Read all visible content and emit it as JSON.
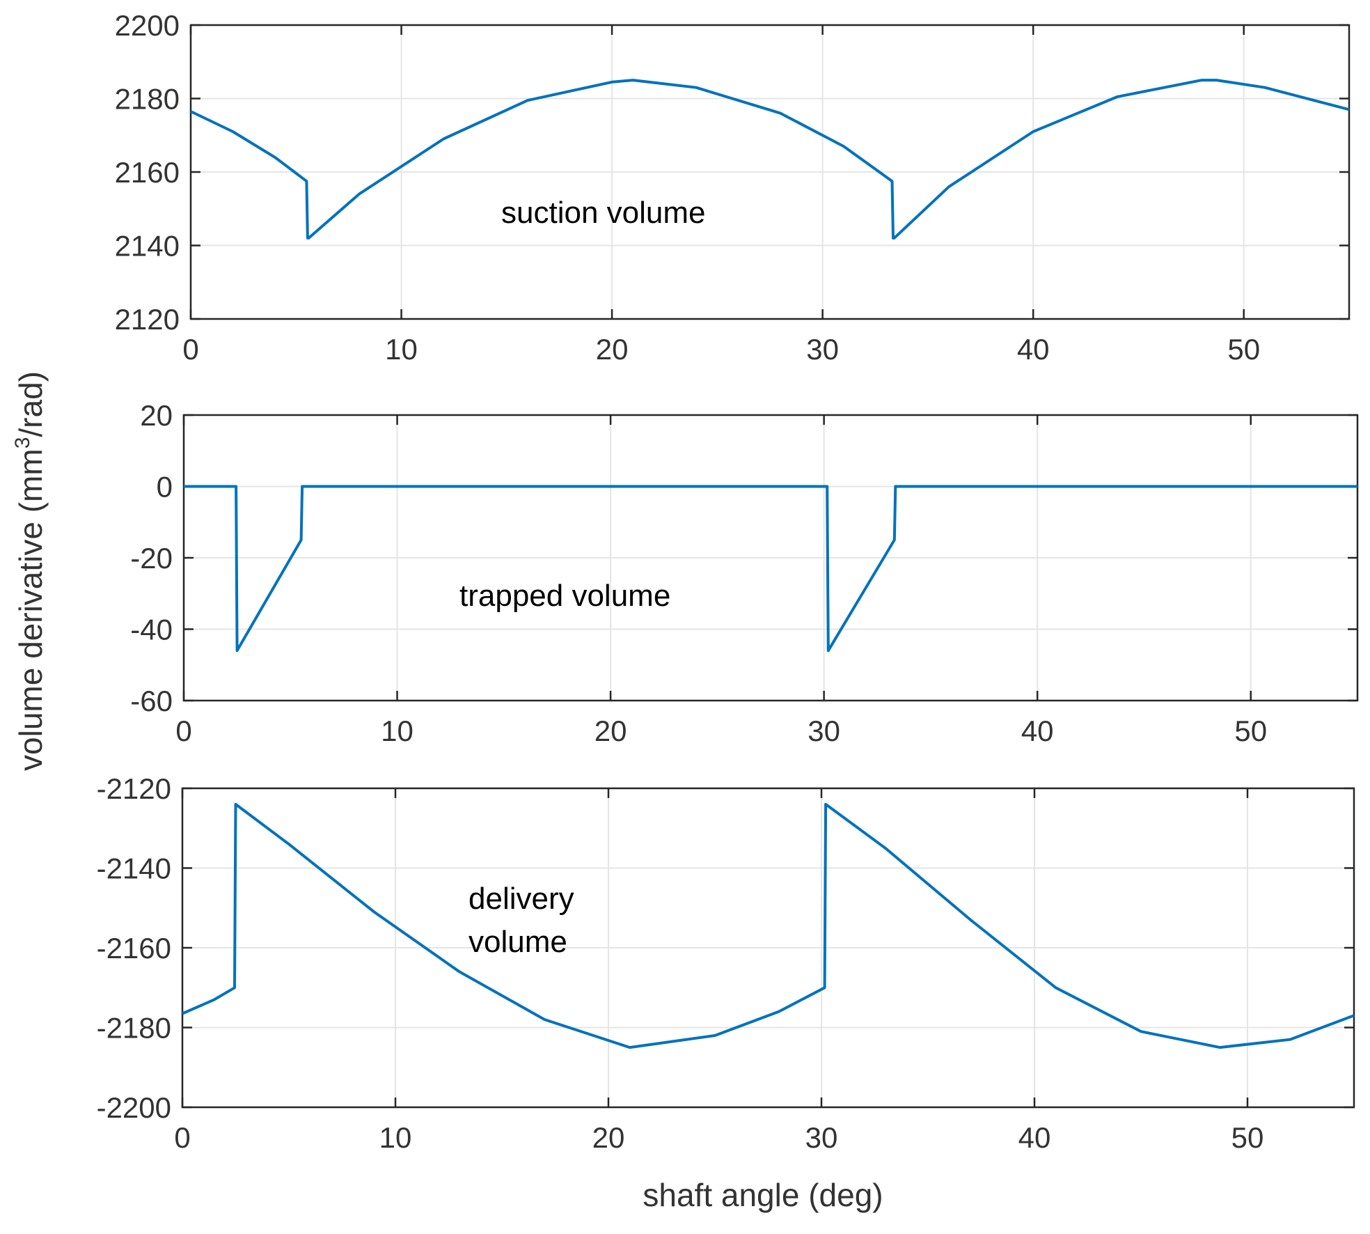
{
  "figure": {
    "ylabel_main": "volume derivative (mm",
    "ylabel_sup": "3",
    "ylabel_tail": "/rad)",
    "xlabel": "shaft angle (deg)"
  },
  "colors": {
    "line": "#0072bd",
    "grid": "#e5e5e5",
    "axis": "#262626",
    "text": "#333333"
  },
  "chart_data": [
    {
      "type": "line",
      "annotation": [
        "suction volume"
      ],
      "xlim": [
        0,
        55
      ],
      "ylim": [
        2120,
        2200
      ],
      "xticks": [
        "0",
        "10",
        "20",
        "30",
        "40",
        "50"
      ],
      "yticks": [
        "2120",
        "2140",
        "2160",
        "2180",
        "2200"
      ],
      "grid": true,
      "x": [
        0,
        2,
        4,
        5.5,
        5.55,
        5.6,
        8,
        12,
        16,
        20,
        21,
        24,
        28,
        31,
        33.3,
        33.35,
        33.4,
        36,
        40,
        44,
        48,
        48.7,
        51,
        55
      ],
      "y": [
        2176.5,
        2171,
        2164,
        2157.5,
        2142,
        2142,
        2154,
        2169,
        2179.5,
        2184.5,
        2185,
        2183,
        2176,
        2167,
        2157.5,
        2142,
        2142,
        2156,
        2171,
        2180.5,
        2185,
        2185,
        2183,
        2177
      ]
    },
    {
      "type": "line",
      "annotation": [
        "trapped volume"
      ],
      "xlim": [
        0,
        55
      ],
      "ylim": [
        -60,
        20
      ],
      "xticks": [
        "0",
        "10",
        "20",
        "30",
        "40",
        "50"
      ],
      "yticks": [
        "-60",
        "-40",
        "-20",
        "0",
        "20"
      ],
      "grid": true,
      "x": [
        0,
        2.45,
        2.5,
        5.5,
        5.55,
        30.15,
        30.2,
        33.3,
        33.35,
        55
      ],
      "y": [
        0,
        0,
        -46,
        -15,
        0,
        0,
        -46,
        -15,
        0,
        0
      ]
    },
    {
      "type": "line",
      "annotation": [
        "delivery",
        "volume"
      ],
      "xlim": [
        0,
        55
      ],
      "ylim": [
        -2200,
        -2120
      ],
      "xticks": [
        "0",
        "10",
        "20",
        "30",
        "40",
        "50"
      ],
      "yticks": [
        "-2200",
        "-2180",
        "-2160",
        "-2140",
        "-2120"
      ],
      "grid": true,
      "x": [
        0,
        1.5,
        2.45,
        2.5,
        5,
        9,
        13,
        17,
        21,
        25,
        28,
        30.15,
        30.2,
        33,
        37,
        41,
        45,
        48.7,
        52,
        55
      ],
      "y": [
        -2176.5,
        -2173,
        -2170,
        -2124,
        -2134,
        -2151,
        -2166,
        -2178,
        -2185,
        -2182,
        -2176,
        -2170,
        -2124,
        -2135,
        -2153,
        -2170,
        -2181,
        -2185,
        -2183,
        -2177
      ]
    }
  ]
}
